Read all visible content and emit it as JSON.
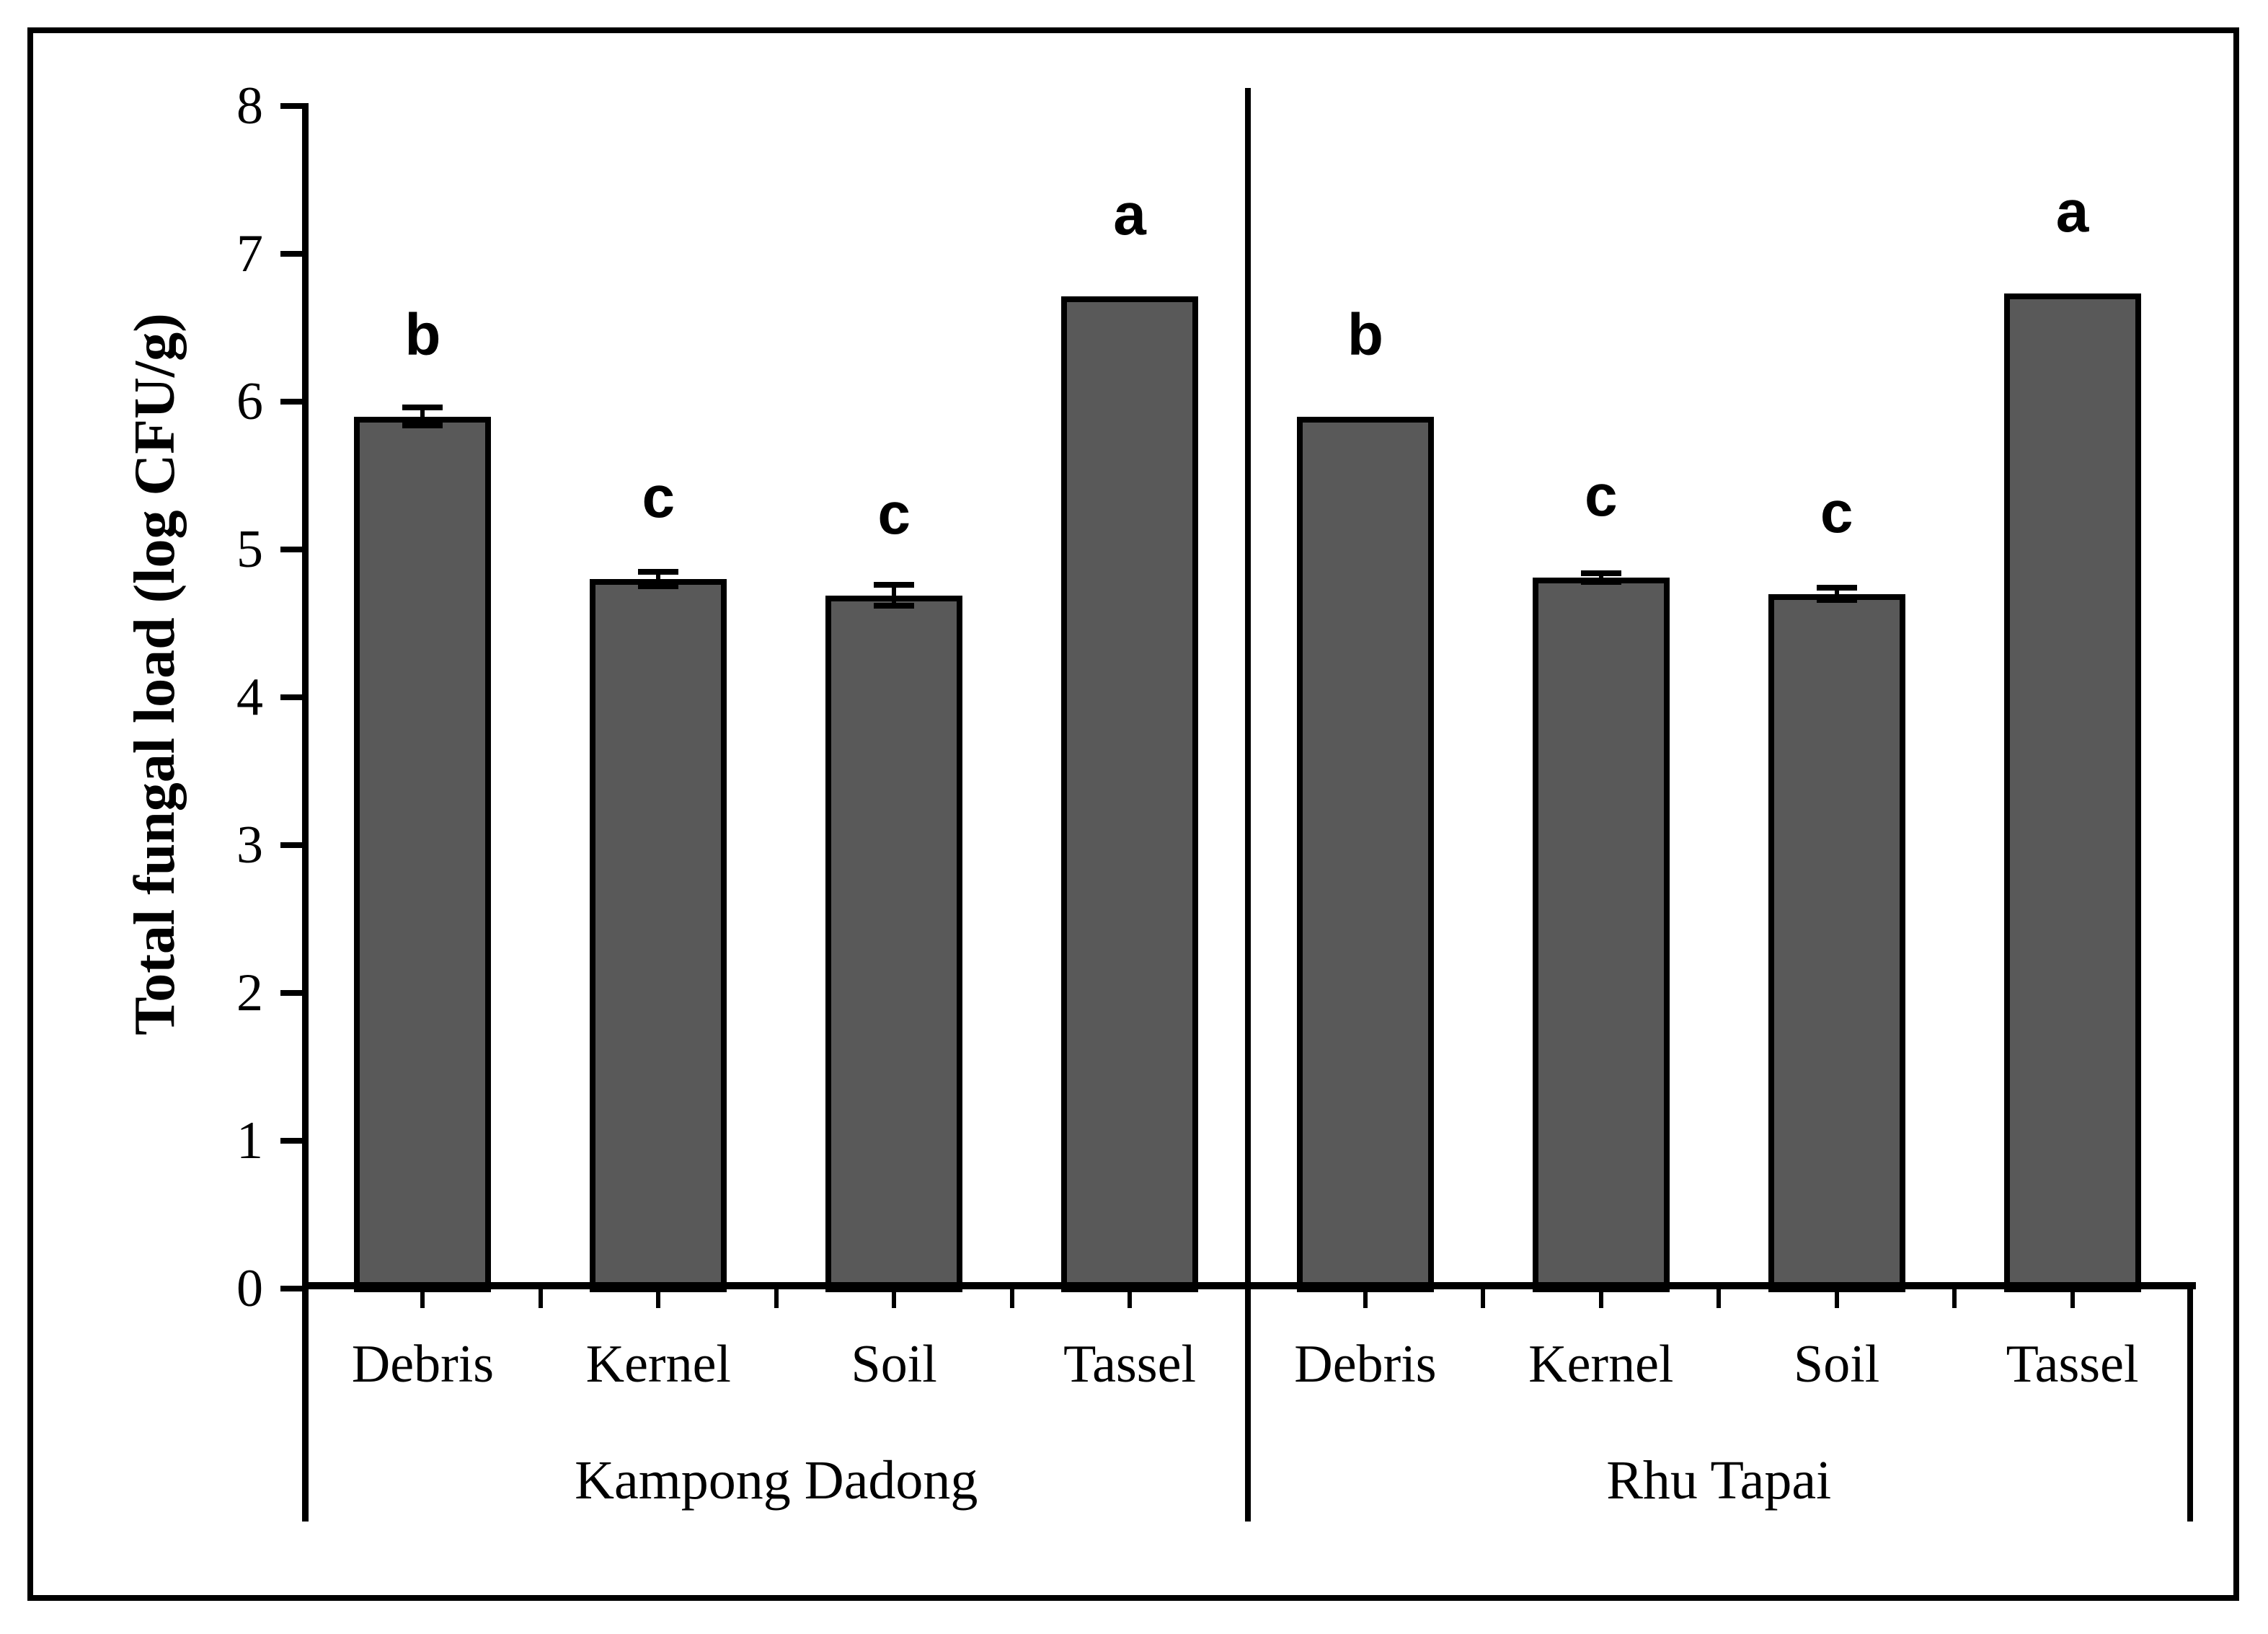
{
  "figure": {
    "background_color": "#ffffff",
    "border_color": "#000000",
    "bar_fill_color": "#595959",
    "axis_color": "#000000"
  },
  "chart_data": {
    "type": "bar",
    "title": "",
    "xlabel": "",
    "ylabel": "Total fungal load (log CFU/g)",
    "ylim": [
      0,
      8
    ],
    "yticks": [
      0,
      1,
      2,
      3,
      4,
      5,
      6,
      7,
      8
    ],
    "grid": false,
    "legend": null,
    "error_bars": true,
    "groups": [
      {
        "label": "Kampong Dadong",
        "categories": [
          "Debris",
          "Kernel",
          "Soil",
          "Tassel"
        ],
        "values": [
          5.9,
          4.8,
          4.69,
          6.71
        ],
        "errors": [
          0.06,
          0.05,
          0.07,
          0
        ],
        "sig_letters": [
          "b",
          "c",
          "c",
          "a"
        ]
      },
      {
        "label": "Rhu Tapai",
        "categories": [
          "Debris",
          "Kernel",
          "Soil",
          "Tassel"
        ],
        "values": [
          5.9,
          4.81,
          4.7,
          6.73
        ],
        "errors": [
          0,
          0.03,
          0.04,
          0
        ],
        "sig_letters": [
          "b",
          "c",
          "c",
          "a"
        ]
      }
    ]
  }
}
